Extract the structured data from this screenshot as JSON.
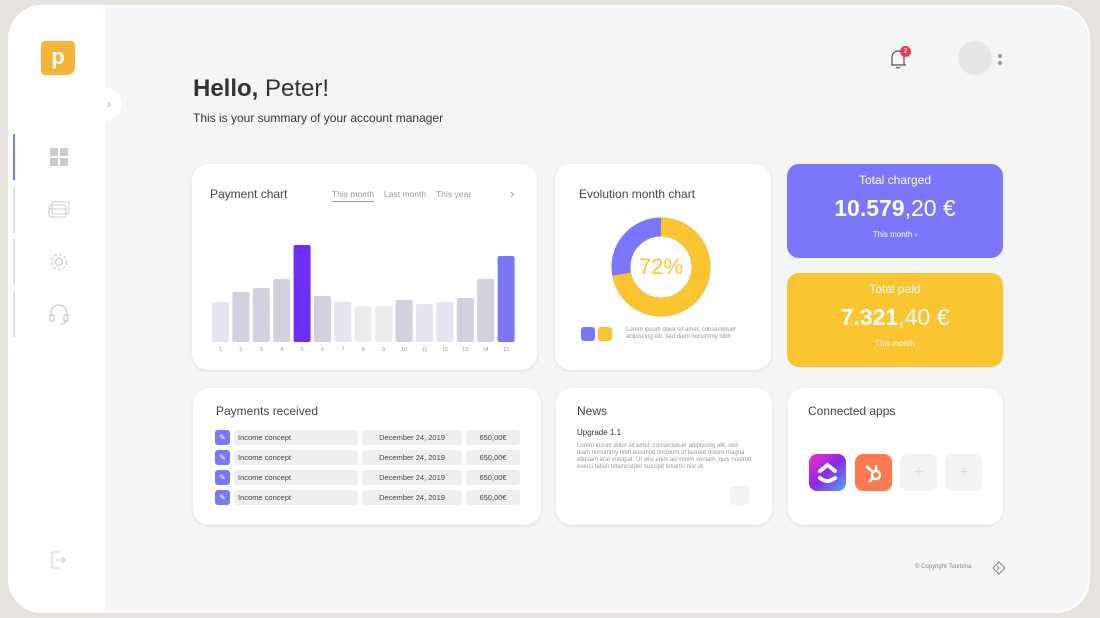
{
  "brand": {
    "logo_letter": "p"
  },
  "header": {
    "notifications": "2"
  },
  "greeting": {
    "hello": "Hello,",
    "name": "Peter!",
    "subtitle": "This is your summary of your account manager"
  },
  "payment_chart": {
    "title": "Payment chart",
    "tabs": [
      "This month",
      "Last month",
      "This year"
    ]
  },
  "chart_data": {
    "type": "bar",
    "title": "Payment chart",
    "categories": [
      "1",
      "2",
      "3",
      "4",
      "5",
      "6",
      "7",
      "8",
      "9",
      "10",
      "11",
      "12",
      "13",
      "14",
      "15"
    ],
    "values": [
      40,
      50,
      54,
      63,
      97,
      46,
      40,
      36,
      36,
      42,
      38,
      40,
      44,
      63,
      86
    ],
    "ylim": [
      0,
      100
    ]
  },
  "evolution": {
    "title": "Evolution month chart",
    "percent": 72,
    "percent_label": "72%",
    "legend_text": "Lorem ipsum dolor sit amet, consectetuer adipiscing elit, sed diam nonummy nibh",
    "colors": {
      "primary": "#fbc531",
      "secondary": "#7b76fa"
    }
  },
  "total_charged": {
    "title": "Total charged",
    "int": "10.579",
    "dec": ",20 €",
    "period": "This month  ›"
  },
  "total_paid": {
    "title": "Total paid",
    "int": "7.321",
    "dec": ",40 €",
    "period": "This month"
  },
  "payments": {
    "title": "Payments received",
    "rows": [
      {
        "concept": "Income concept",
        "date": "December 24, 2019",
        "amount": "650,00€"
      },
      {
        "concept": "Income concept",
        "date": "December 24, 2019",
        "amount": "650,00€"
      },
      {
        "concept": "Income concept",
        "date": "December 24, 2019",
        "amount": "650,00€"
      },
      {
        "concept": "Income concept",
        "date": "December 24, 2019",
        "amount": "650,00€"
      }
    ]
  },
  "news": {
    "title": "News",
    "headline": "Upgrade 1.1",
    "body": "Lorem ipsum dolor sit amet, consectetuer adipiscing elit, sed diam nonummy nibh euismod tincidunt ut laoreet dolore magna aliquam erat volutpat. Ut wisi enim ad minim veniam, quis nostrud exerci tation ullamcorper suscipit lobortis nisl ut."
  },
  "apps": {
    "title": "Connected apps",
    "plus": "+"
  },
  "footer": {
    "copyright": "© Copyright Tourbina"
  }
}
